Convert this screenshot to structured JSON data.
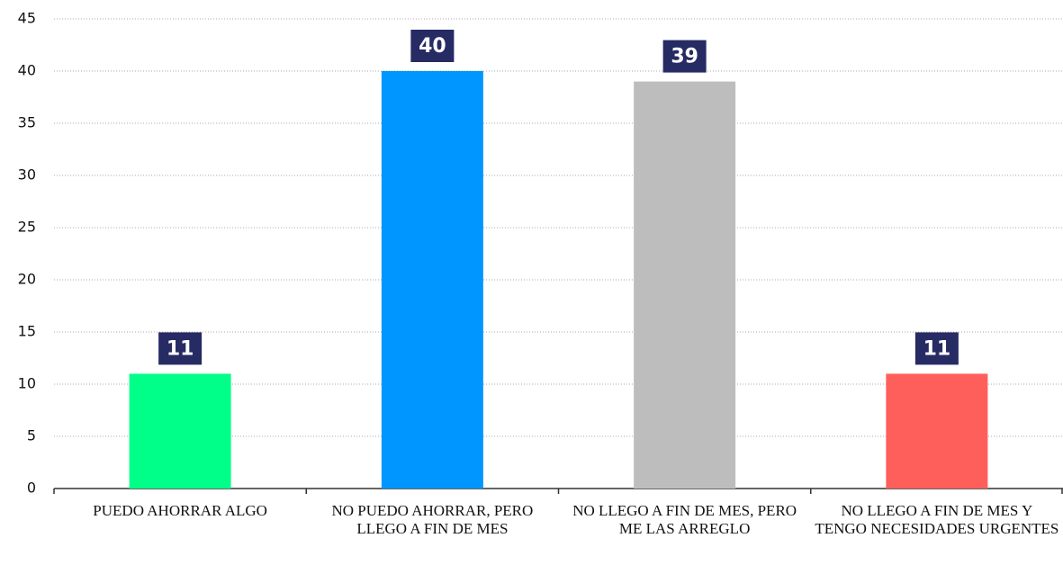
{
  "chart_data": {
    "type": "bar",
    "categories": [
      "PUEDO AHORRAR ALGO",
      "NO PUEDO AHORRAR, PERO LLEGO A FIN DE MES",
      "NO LLEGO A FIN DE MES, PERO ME LAS ARREGLO",
      "NO LLEGO A FIN DE MES Y TENGO NECESIDADES URGENTES"
    ],
    "values": [
      11,
      40,
      39,
      11
    ],
    "colors": [
      "#00ff88",
      "#0096ff",
      "#bdbdbd",
      "#ff5f5a"
    ],
    "label_color": "#262b63",
    "ylim": [
      0,
      45
    ],
    "yticks": [
      0,
      5,
      10,
      15,
      20,
      25,
      30,
      35,
      40,
      45
    ],
    "grid": true
  }
}
